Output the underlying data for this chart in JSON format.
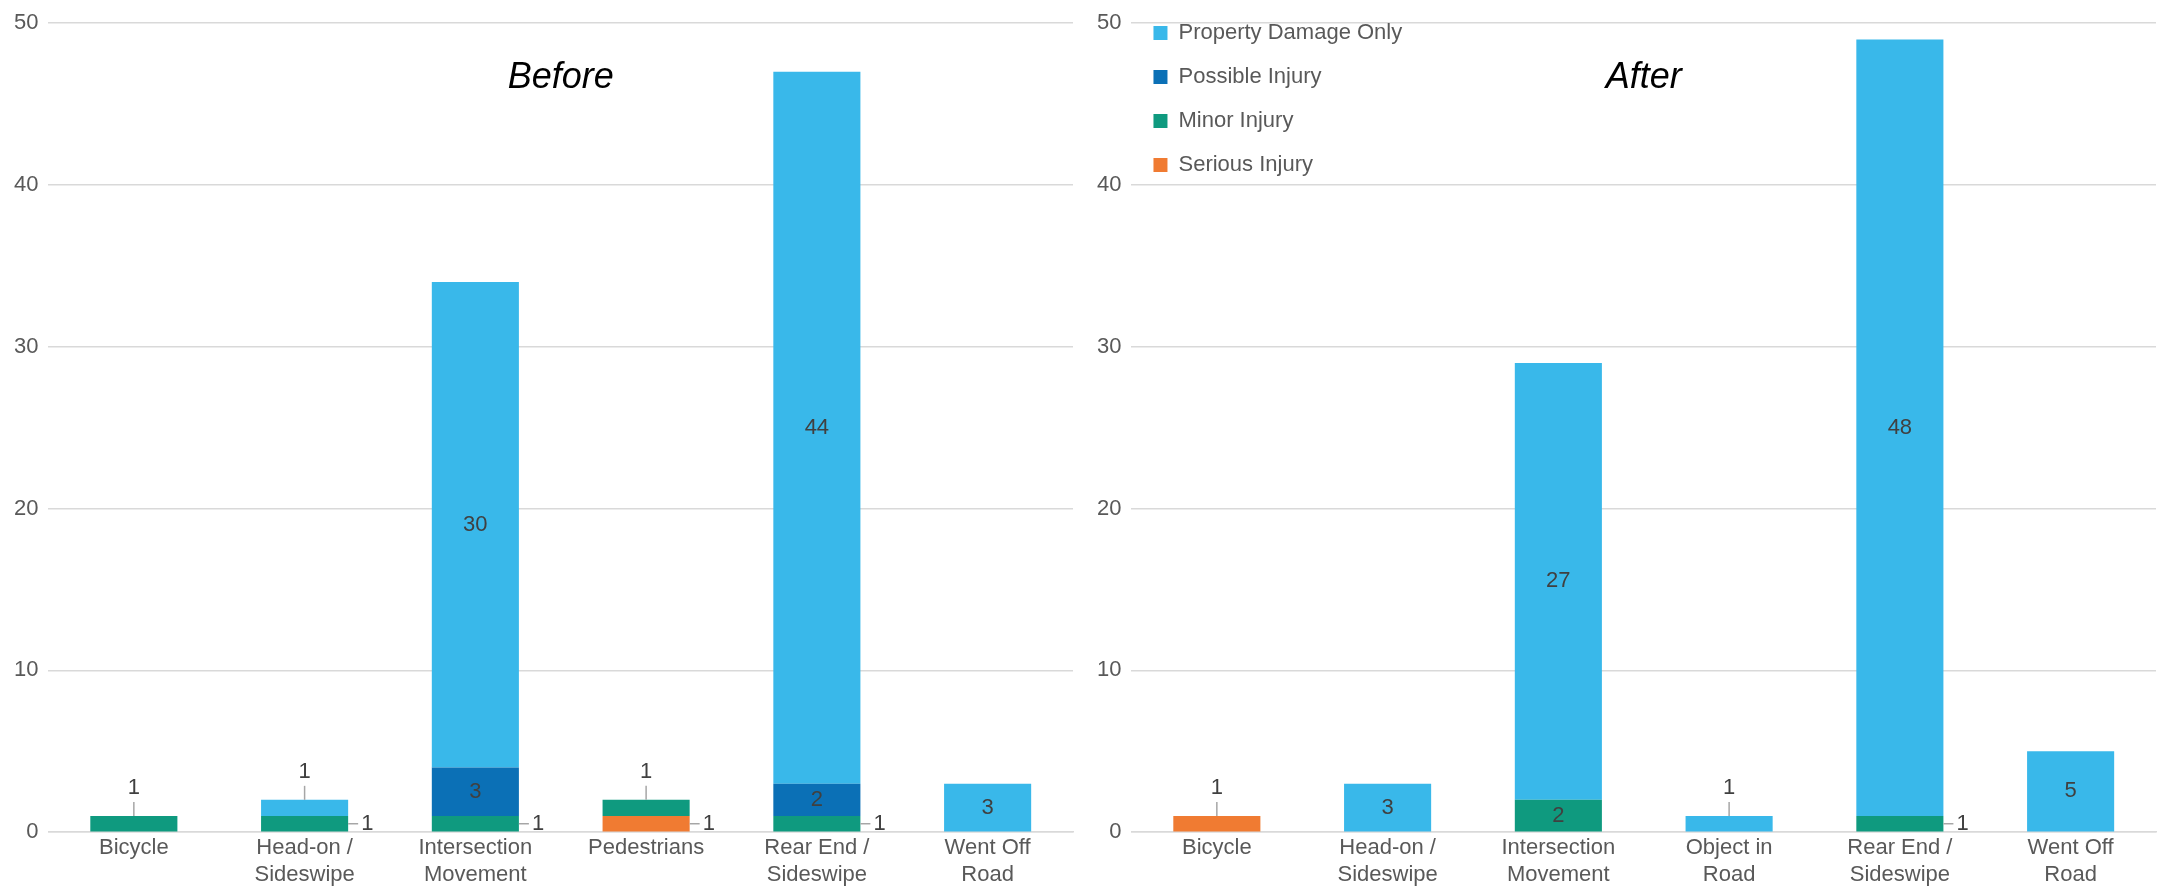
{
  "chart_data": [
    {
      "type": "bar",
      "title": "Before",
      "stacked": true,
      "categories": [
        "Bicycle",
        "Head-on / Sideswipe",
        "Intersection Movement",
        "Pedestrians",
        "Rear End / Sideswipe",
        "Went Off Road"
      ],
      "series": [
        {
          "color": "#f07b32",
          "values": [
            null,
            null,
            null,
            1,
            null,
            null
          ]
        },
        {
          "color": "#0f9a7f",
          "values": [
            1,
            1,
            1,
            1,
            1,
            null
          ]
        },
        {
          "color": "#0b70b6",
          "values": [
            null,
            null,
            3,
            null,
            2,
            null
          ]
        },
        {
          "color": "#39b8ea",
          "values": [
            null,
            1,
            30,
            null,
            44,
            3
          ]
        }
      ],
      "ylim": [
        0,
        50
      ],
      "yticks": [
        0,
        10,
        20,
        30,
        40,
        50
      ],
      "grid": "y",
      "data_labels": true,
      "legend": false
    },
    {
      "type": "bar",
      "title": "After",
      "stacked": true,
      "categories": [
        "Bicycle",
        "Head-on / Sideswipe",
        "Intersection Movement",
        "Object in Road",
        "Rear End / Sideswipe",
        "Went Off Road"
      ],
      "series": [
        {
          "name": "Serious Injury",
          "color": "#f07b32",
          "values": [
            1,
            null,
            null,
            null,
            null,
            null
          ]
        },
        {
          "name": "Minor Injury",
          "color": "#0f9a7f",
          "values": [
            null,
            null,
            2,
            null,
            1,
            null
          ]
        },
        {
          "name": "Possible Injury",
          "color": "#0b70b6",
          "values": [
            null,
            null,
            null,
            null,
            null,
            null
          ]
        },
        {
          "name": "Property Damage Only",
          "color": "#39b8ea",
          "values": [
            null,
            3,
            27,
            1,
            48,
            5
          ]
        }
      ],
      "ylim": [
        0,
        50
      ],
      "yticks": [
        0,
        10,
        20,
        30,
        40,
        50
      ],
      "grid": "y",
      "data_labels": true,
      "legend": "top left"
    }
  ]
}
